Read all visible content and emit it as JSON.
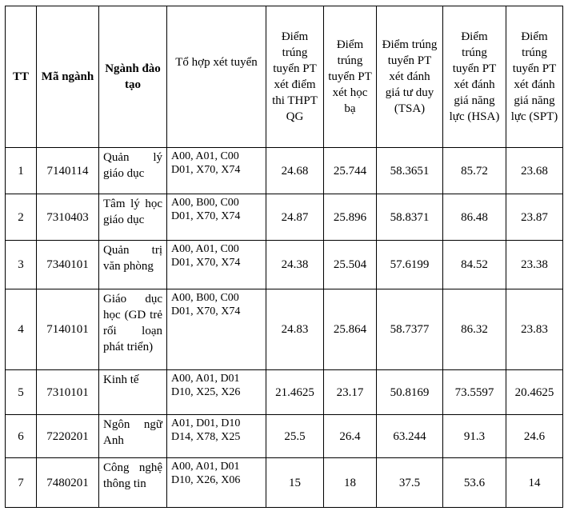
{
  "table": {
    "headers": [
      "TT",
      "Mã ngành",
      "Ngành đào tạo",
      "Tổ hợp xét tuyển",
      "Điểm trúng tuyển PT xét điểm thi THPT QG",
      "Điểm trúng tuyển PT xét học bạ",
      "Điểm trúng tuyển PT xét đánh giá tư duy (TSA)",
      "Điểm trúng tuyển PT xét đánh giá năng lực (HSA)",
      "Điểm trúng tuyển PT xét đánh giá năng lực (SPT)"
    ],
    "rows": [
      [
        "1",
        "7140114",
        "Quản lý giáo dục",
        [
          "A00, A01, C00",
          "D01, X70, X74"
        ],
        "24.68",
        "25.744",
        "58.3651",
        "85.72",
        "23.68"
      ],
      [
        "2",
        "7310403",
        "Tâm lý học giáo dục",
        [
          "A00, B00, C00",
          "D01, X70, X74"
        ],
        "24.87",
        "25.896",
        "58.8371",
        "86.48",
        "23.87"
      ],
      [
        "3",
        "7340101",
        "Quản trị văn phòng",
        [
          "A00, A01, C00",
          "D01, X70, X74"
        ],
        "24.38",
        "25.504",
        "57.6199",
        "84.52",
        "23.38"
      ],
      [
        "4",
        "7140101",
        "Giáo dục học (GD trẻ rối loạn phát triển)",
        [
          "A00, B00, C00",
          "D01, X70, X74"
        ],
        "24.83",
        "25.864",
        "58.7377",
        "86.32",
        "23.83"
      ],
      [
        "5",
        "7310101",
        "Kinh tế",
        [
          "A00, A01, D01",
          "D10, X25, X26"
        ],
        "21.4625",
        "23.17",
        "50.8169",
        "73.5597",
        "20.4625"
      ],
      [
        "6",
        "7220201",
        "Ngôn ngữ Anh",
        [
          "A01, D01, D10",
          "D14, X78, X25"
        ],
        "25.5",
        "26.4",
        "63.244",
        "91.3",
        "24.6"
      ],
      [
        "7",
        "7480201",
        "Công nghệ thông tin",
        [
          "A00, A01, D01",
          "D10, X26, X06"
        ],
        "15",
        "18",
        "37.5",
        "53.6",
        "14"
      ]
    ]
  }
}
